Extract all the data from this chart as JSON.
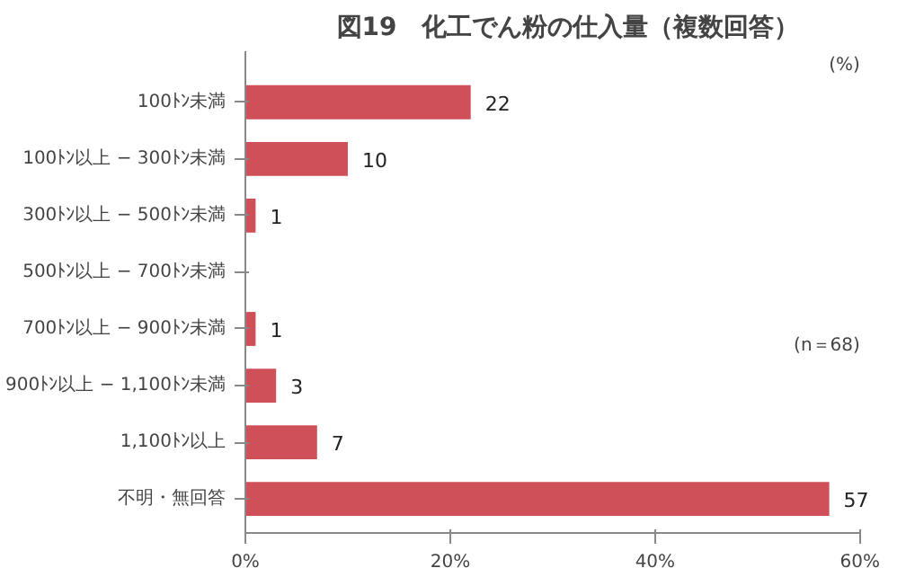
{
  "chart_data": {
    "type": "bar",
    "orientation": "horizontal",
    "title": "図19　化工でん粉の仕入量（複数回答）",
    "categories": [
      "100ﾄﾝ未満",
      "100ﾄﾝ以上 − 300ﾄﾝ未満",
      "300ﾄﾝ以上 − 500ﾄﾝ未満",
      "500ﾄﾝ以上 − 700ﾄﾝ未満",
      "700ﾄﾝ以上 − 900ﾄﾝ未満",
      "900ﾄﾝ以上 − 1,100ﾄﾝ未満",
      "1,100ﾄﾝ以上",
      "不明・無回答"
    ],
    "values": [
      22,
      10,
      1,
      0,
      1,
      3,
      7,
      57
    ],
    "value_labels": [
      "22",
      "10",
      "1",
      null,
      "1",
      "3",
      "7",
      "57"
    ],
    "color": "#d0505a",
    "xlim": [
      0,
      60
    ],
    "xticks": [
      {
        "value": 0,
        "label": "0%"
      },
      {
        "value": 20,
        "label": "20%"
      },
      {
        "value": 40,
        "label": "40%"
      },
      {
        "value": 60,
        "label": "60%"
      }
    ],
    "grid": false,
    "annotations": [
      "(%)",
      "(n＝68)"
    ]
  }
}
